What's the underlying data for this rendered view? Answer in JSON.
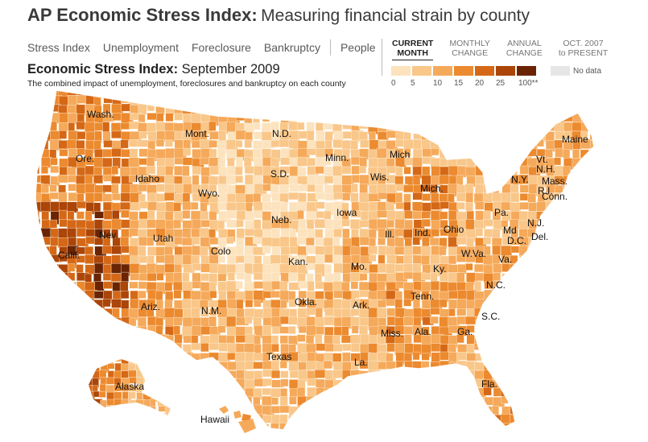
{
  "header": {
    "title_bold": "AP Economic Stress Index:",
    "title_light": "Measuring financial strain by county"
  },
  "nav": {
    "items": [
      "Stress Index",
      "Unemployment",
      "Foreclosure",
      "Bankruptcy",
      "People"
    ]
  },
  "view_tabs": [
    {
      "line1": "CURRENT",
      "line2": "MONTH",
      "active": true
    },
    {
      "line1": "MONTHLY",
      "line2": "CHANGE",
      "active": false
    },
    {
      "line1": "ANNUAL",
      "line2": "CHANGE",
      "active": false
    },
    {
      "line1": "OCT. 2007",
      "line2": "to PRESENT",
      "active": false
    }
  ],
  "map_header": {
    "title_bold": "Economic Stress Index:",
    "title_date": "September 2009",
    "description": "The combined impact of unemployment, foreclosures and bankruptcy on each county"
  },
  "legend": {
    "ticks": [
      "0",
      "5",
      "10",
      "15",
      "20",
      "25",
      "100**"
    ],
    "colors": [
      "#fce3be",
      "#f9c78a",
      "#f5a95a",
      "#ec8a2f",
      "#d46817",
      "#ab4508",
      "#6a2404"
    ],
    "no_data_label": "No data",
    "no_data_color": "#e6e6e6"
  },
  "state_labels": [
    {
      "label": "Wash."
    },
    {
      "label": "Ore."
    },
    {
      "label": "Calif."
    },
    {
      "label": "Nev."
    },
    {
      "label": "Idaho"
    },
    {
      "label": "Mont."
    },
    {
      "label": "Wyo."
    },
    {
      "label": "Utah"
    },
    {
      "label": "Ariz."
    },
    {
      "label": "Colo"
    },
    {
      "label": "N.M."
    },
    {
      "label": "N.D."
    },
    {
      "label": "S.D."
    },
    {
      "label": "Neb."
    },
    {
      "label": "Kan."
    },
    {
      "label": "Okla."
    },
    {
      "label": "Texas"
    },
    {
      "label": "Minn."
    },
    {
      "label": "Iowa"
    },
    {
      "label": "Mo."
    },
    {
      "label": "Ark."
    },
    {
      "label": "La."
    },
    {
      "label": "Wis."
    },
    {
      "label": "Ill."
    },
    {
      "label": "Mich"
    },
    {
      "label": "Mich."
    },
    {
      "label": "Ind."
    },
    {
      "label": "Ohio"
    },
    {
      "label": "Ky."
    },
    {
      "label": "Tenn."
    },
    {
      "label": "Miss."
    },
    {
      "label": "Ala."
    },
    {
      "label": "Ga."
    },
    {
      "label": "Fla."
    },
    {
      "label": "S.C."
    },
    {
      "label": "N.C."
    },
    {
      "label": "Va."
    },
    {
      "label": "W.Va."
    },
    {
      "label": "Pa."
    },
    {
      "label": "N.Y."
    },
    {
      "label": "Md"
    },
    {
      "label": "Del."
    },
    {
      "label": "D.C."
    },
    {
      "label": "N.J."
    },
    {
      "label": "Conn."
    },
    {
      "label": "R.I."
    },
    {
      "label": "Mass."
    },
    {
      "label": "N.H."
    },
    {
      "label": "Vt."
    },
    {
      "label": "Maine"
    },
    {
      "label": "Alaska"
    },
    {
      "label": "Hawaii"
    }
  ]
}
